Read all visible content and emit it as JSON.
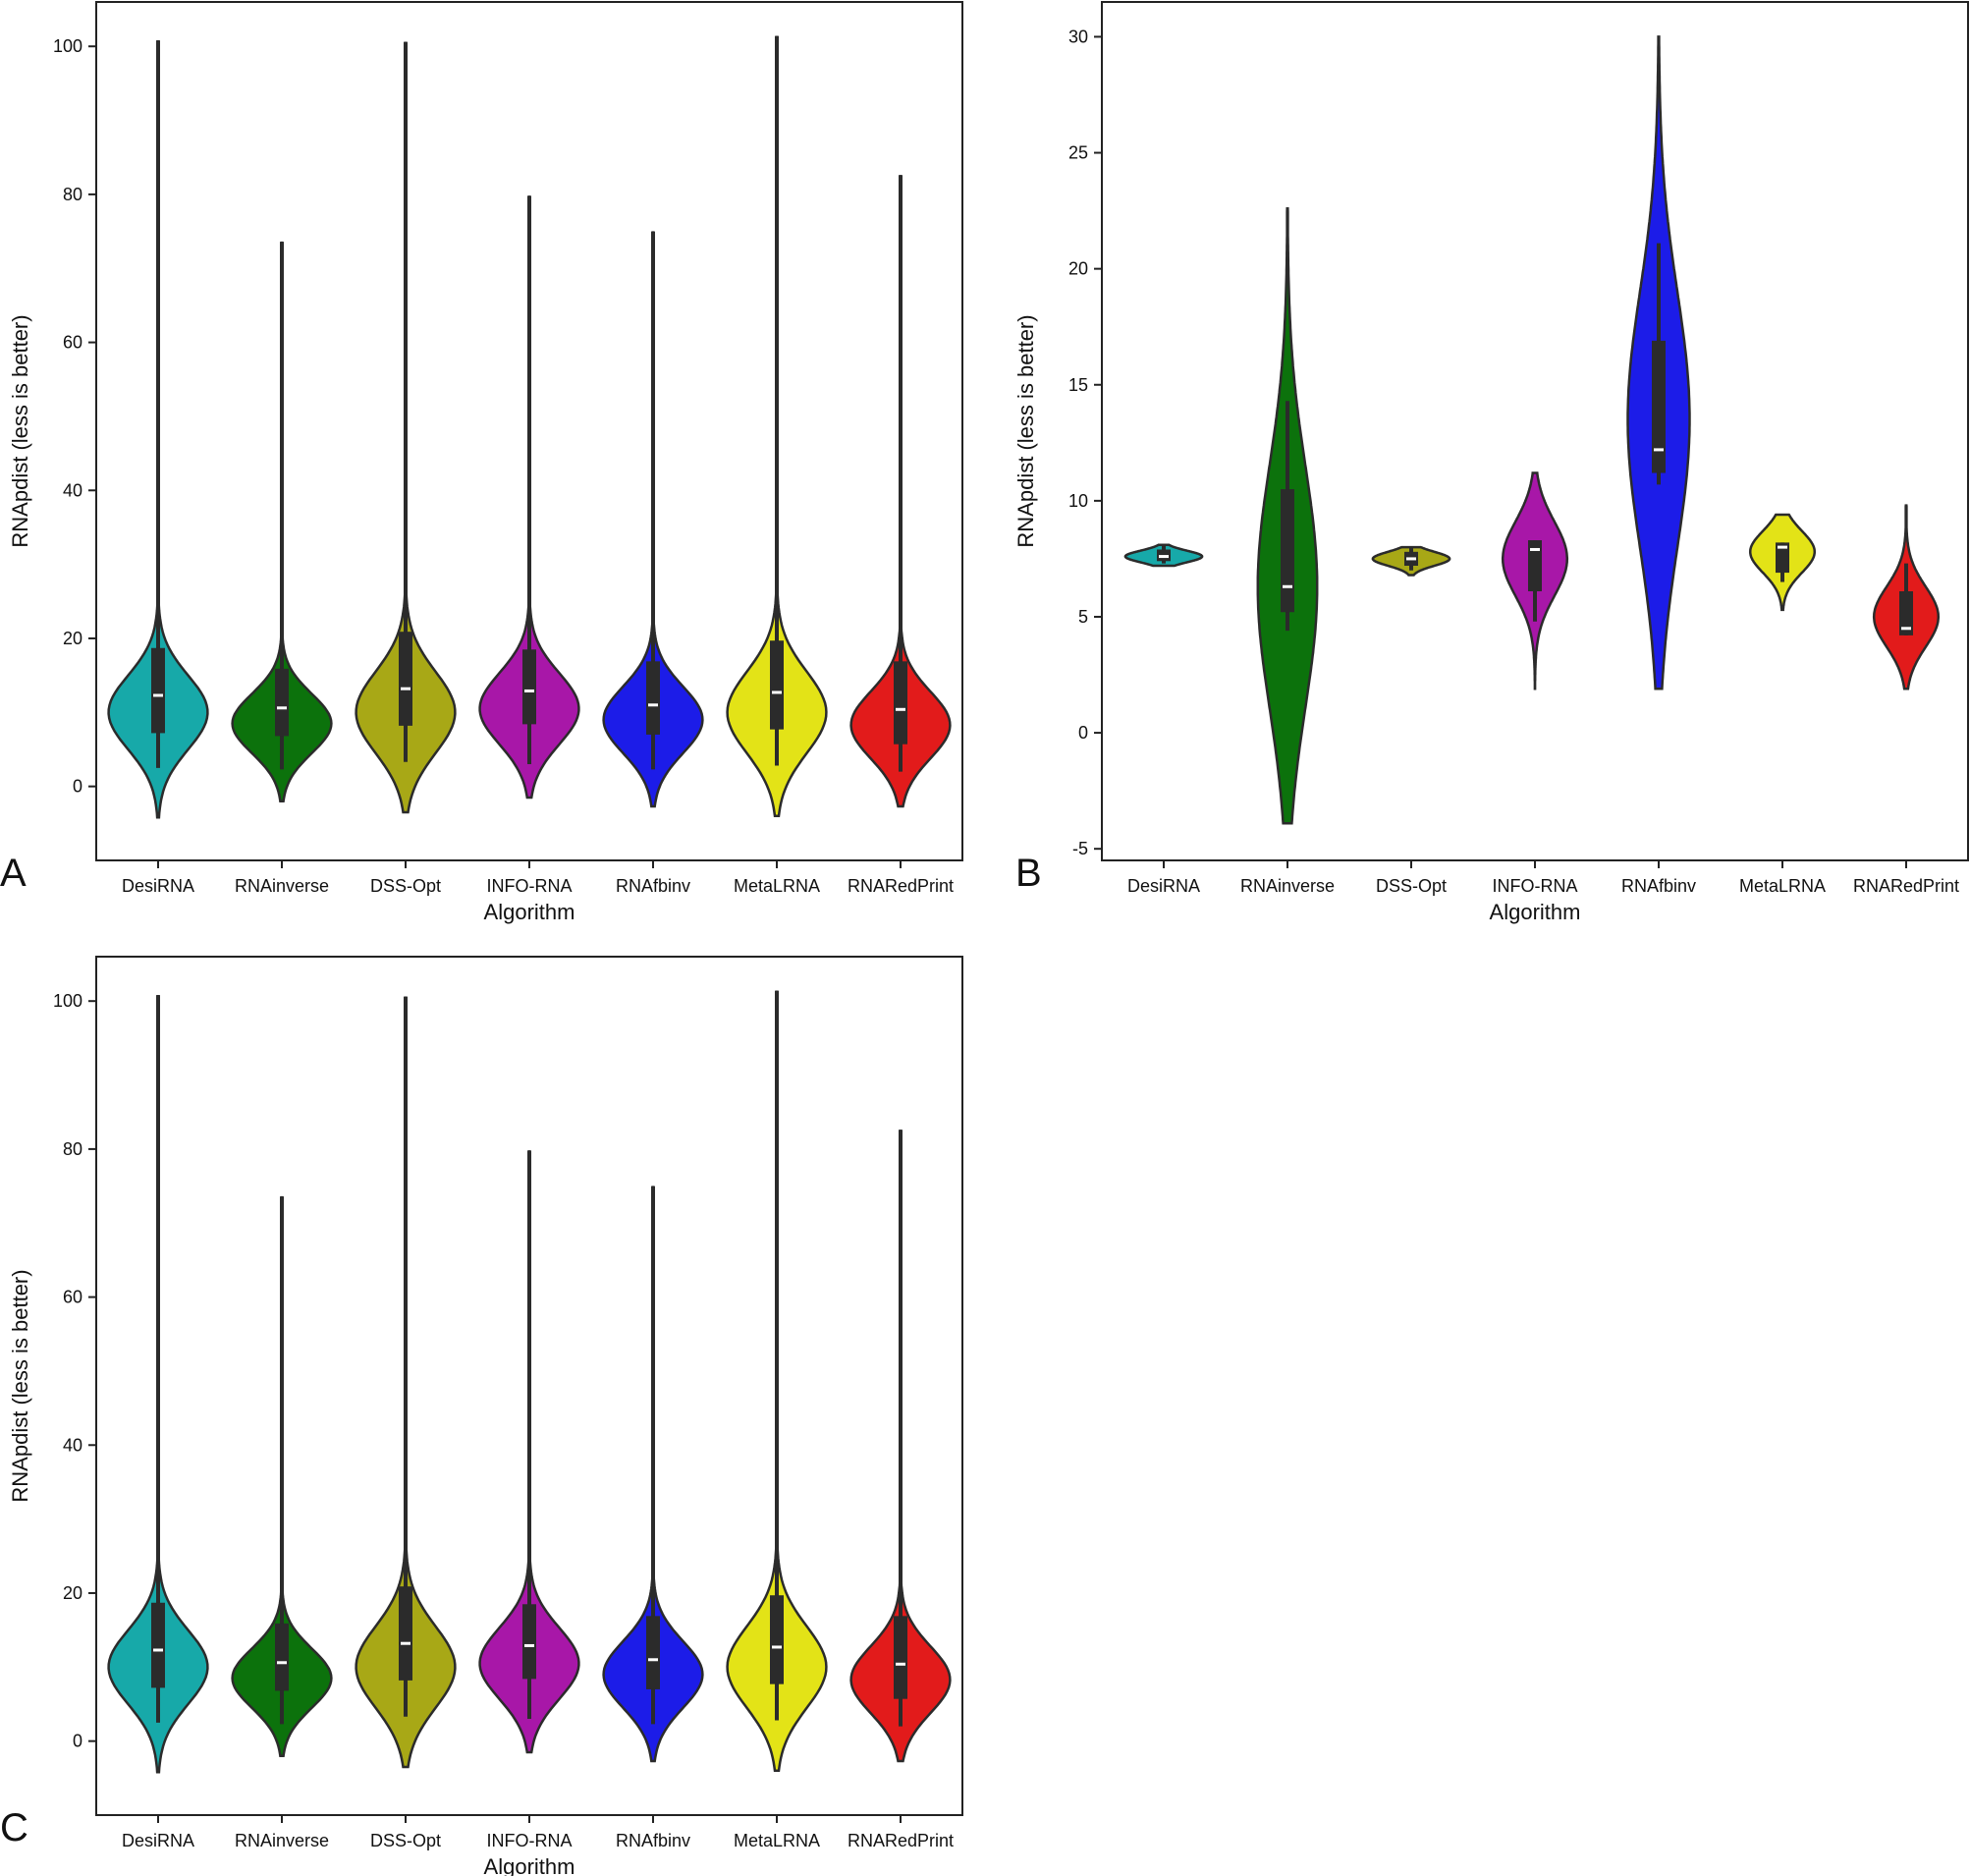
{
  "chart_data": [
    {
      "panel": "A",
      "type": "violin",
      "xlabel": "Algorithm",
      "ylabel": "RNApdist (less is better)",
      "ylim": [
        -10,
        106
      ],
      "yticks": [
        0,
        20,
        40,
        60,
        80,
        100
      ],
      "grid": false,
      "categories": [
        "DesiRNA",
        "RNAinverse",
        "DSS-Opt",
        "INFO-RNA",
        "RNAfbinv",
        "MetaLRNA",
        "RNARedPrint"
      ],
      "colors": [
        "#17a9a9",
        "#0c720c",
        "#a8a816",
        "#a817a8",
        "#1c1ce8",
        "#e3e317",
        "#e21b1b"
      ],
      "series": [
        {
          "name": "DesiRNA",
          "min": 2.5,
          "q1": 7.2,
          "median": 12.3,
          "q3": 18.7,
          "max": 100.8,
          "wlo": -4.2,
          "whi": 100.8,
          "mode": 10,
          "width": 0.8,
          "sd": 5,
          "knot": 32
        },
        {
          "name": "RNAinverse",
          "min": 2.3,
          "q1": 6.8,
          "median": 10.6,
          "q3": 15.9,
          "max": 73.6,
          "wlo": -2.0,
          "whi": 73.6,
          "mode": 8.5,
          "width": 0.8,
          "sd": 4,
          "knot": 26
        },
        {
          "name": "DSS-Opt",
          "min": 3.3,
          "q1": 8.2,
          "median": 13.2,
          "q3": 20.9,
          "max": 100.6,
          "wlo": -3.5,
          "whi": 100.6,
          "mode": 10,
          "width": 0.8,
          "sd": 5.5,
          "knot": 33
        },
        {
          "name": "INFO-RNA",
          "min": 3.0,
          "q1": 8.4,
          "median": 12.9,
          "q3": 18.5,
          "max": 79.8,
          "wlo": -1.5,
          "whi": 79.8,
          "mode": 10.5,
          "width": 0.8,
          "sd": 4.8,
          "knot": 30
        },
        {
          "name": "RNAfbinv",
          "min": 2.3,
          "q1": 7.0,
          "median": 11.0,
          "q3": 16.9,
          "max": 75.0,
          "wlo": -2.7,
          "whi": 75.0,
          "mode": 9,
          "width": 0.8,
          "sd": 4.5,
          "knot": 28
        },
        {
          "name": "MetaLRNA",
          "min": 2.8,
          "q1": 7.7,
          "median": 12.7,
          "q3": 19.7,
          "max": 101.4,
          "wlo": -4.0,
          "whi": 101.4,
          "mode": 10,
          "width": 0.8,
          "sd": 5.5,
          "knot": 33
        },
        {
          "name": "RNARedPrint",
          "min": 2.0,
          "q1": 5.7,
          "median": 10.4,
          "q3": 16.9,
          "max": 82.6,
          "wlo": -2.7,
          "whi": 82.6,
          "mode": 8.3,
          "width": 0.8,
          "sd": 4.5,
          "knot": 30
        }
      ]
    },
    {
      "panel": "B",
      "type": "violin",
      "xlabel": "Algorithm",
      "ylabel": "RNApdist (less is better)",
      "ylim": [
        -5.5,
        31.5
      ],
      "yticks": [
        -5,
        0,
        5,
        10,
        15,
        20,
        25,
        30
      ],
      "grid": false,
      "categories": [
        "DesiRNA",
        "RNAinverse",
        "DSS-Opt",
        "INFO-RNA",
        "RNAfbinv",
        "MetaLRNA",
        "RNARedPrint"
      ],
      "colors": [
        "#17a9a9",
        "#0c720c",
        "#a8a816",
        "#a817a8",
        "#1c1ce8",
        "#e3e317",
        "#e21b1b"
      ],
      "series": [
        {
          "name": "DesiRNA",
          "min": 7.3,
          "q1": 7.4,
          "median": 7.6,
          "q3": 7.9,
          "max": 8.1,
          "wlo": 7.2,
          "whi": 8.1,
          "mode": 7.6,
          "width": 0.62,
          "sd": 0.25,
          "knot": 8
        },
        {
          "name": "RNAinverse",
          "min": 4.4,
          "q1": 5.2,
          "median": 6.3,
          "q3": 10.5,
          "max": 14.3,
          "wlo": -3.9,
          "whi": 22.6,
          "mode": 6.3,
          "width": 0.48,
          "sd": 5.2,
          "knot": 12
        },
        {
          "name": "DSS-Opt",
          "min": 7.0,
          "q1": 7.2,
          "median": 7.5,
          "q3": 7.8,
          "max": 8.0,
          "wlo": 6.8,
          "whi": 8.0,
          "mode": 7.5,
          "width": 0.62,
          "sd": 0.3,
          "knot": 8
        },
        {
          "name": "INFO-RNA",
          "min": 4.8,
          "q1": 6.1,
          "median": 7.9,
          "q3": 8.3,
          "max": 8.3,
          "wlo": 1.9,
          "whi": 11.2,
          "mode": 7.5,
          "width": 0.52,
          "sd": 1.6,
          "knot": 10
        },
        {
          "name": "RNAfbinv",
          "min": 10.7,
          "q1": 11.2,
          "median": 12.2,
          "q3": 16.9,
          "max": 21.1,
          "wlo": 1.9,
          "whi": 30.0,
          "mode": 13.5,
          "width": 0.5,
          "sd": 5.5,
          "knot": 18
        },
        {
          "name": "MetaLRNA",
          "min": 6.5,
          "q1": 6.9,
          "median": 8.0,
          "q3": 8.2,
          "max": 8.2,
          "wlo": 5.3,
          "whi": 9.4,
          "mode": 7.8,
          "width": 0.52,
          "sd": 0.9,
          "knot": 9
        },
        {
          "name": "RNARedPrint",
          "min": 4.2,
          "q1": 4.2,
          "median": 4.5,
          "q3": 6.1,
          "max": 7.3,
          "wlo": 1.9,
          "whi": 9.8,
          "mode": 5.0,
          "width": 0.52,
          "sd": 1.3,
          "knot": 8
        }
      ]
    },
    {
      "panel": "C",
      "type": "violin",
      "xlabel": "Algorithm",
      "ylabel": "RNApdist (less is better)",
      "ylim": [
        -10,
        106
      ],
      "yticks": [
        0,
        20,
        40,
        60,
        80,
        100
      ],
      "grid": false,
      "categories": [
        "DesiRNA",
        "RNAinverse",
        "DSS-Opt",
        "INFO-RNA",
        "RNAfbinv",
        "MetaLRNA",
        "RNARedPrint"
      ],
      "colors": [
        "#17a9a9",
        "#0c720c",
        "#a8a816",
        "#a817a8",
        "#1c1ce8",
        "#e3e317",
        "#e21b1b"
      ],
      "series": [
        {
          "name": "DesiRNA",
          "min": 2.5,
          "q1": 7.2,
          "median": 12.3,
          "q3": 18.7,
          "max": 100.8,
          "wlo": -4.2,
          "whi": 100.8,
          "mode": 10,
          "width": 0.8,
          "sd": 5,
          "knot": 32
        },
        {
          "name": "RNAinverse",
          "min": 2.3,
          "q1": 6.8,
          "median": 10.6,
          "q3": 15.9,
          "max": 73.6,
          "wlo": -2.0,
          "whi": 73.6,
          "mode": 8.5,
          "width": 0.8,
          "sd": 4,
          "knot": 26
        },
        {
          "name": "DSS-Opt",
          "min": 3.3,
          "q1": 8.2,
          "median": 13.2,
          "q3": 20.9,
          "max": 100.6,
          "wlo": -3.5,
          "whi": 100.6,
          "mode": 10,
          "width": 0.8,
          "sd": 5.5,
          "knot": 33
        },
        {
          "name": "INFO-RNA",
          "min": 3.0,
          "q1": 8.4,
          "median": 12.9,
          "q3": 18.5,
          "max": 79.8,
          "wlo": -1.5,
          "whi": 79.8,
          "mode": 10.5,
          "width": 0.8,
          "sd": 4.8,
          "knot": 30
        },
        {
          "name": "RNAfbinv",
          "min": 2.3,
          "q1": 7.0,
          "median": 11.0,
          "q3": 16.9,
          "max": 75.0,
          "wlo": -2.7,
          "whi": 75.0,
          "mode": 9,
          "width": 0.8,
          "sd": 4.5,
          "knot": 28
        },
        {
          "name": "MetaLRNA",
          "min": 2.8,
          "q1": 7.7,
          "median": 12.7,
          "q3": 19.7,
          "max": 101.4,
          "wlo": -4.0,
          "whi": 101.4,
          "mode": 10,
          "width": 0.8,
          "sd": 5.5,
          "knot": 33
        },
        {
          "name": "RNARedPrint",
          "min": 2.0,
          "q1": 5.7,
          "median": 10.4,
          "q3": 16.9,
          "max": 82.6,
          "wlo": -2.7,
          "whi": 82.6,
          "mode": 8.3,
          "width": 0.8,
          "sd": 4.5,
          "knot": 30
        }
      ]
    }
  ]
}
